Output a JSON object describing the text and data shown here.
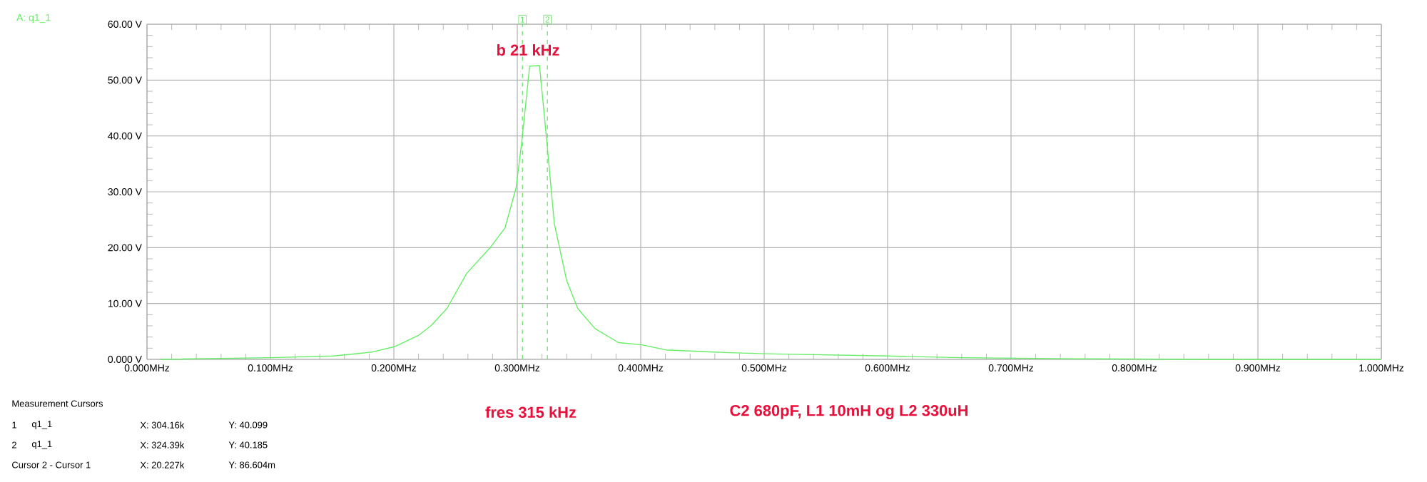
{
  "chart_data": {
    "type": "line",
    "legend": "top left",
    "grid": true,
    "marker": "none",
    "line_style": "solid",
    "xlim": [
      0,
      1
    ],
    "ylim": [
      0,
      60
    ],
    "xticks": [
      {
        "value": 0,
        "label": "0.000MHz"
      },
      {
        "value": 0.1,
        "label": "0.100MHz"
      },
      {
        "value": 0.2,
        "label": "0.200MHz"
      },
      {
        "value": 0.3,
        "label": "0.300MHz"
      },
      {
        "value": 0.4,
        "label": "0.400MHz"
      },
      {
        "value": 0.5,
        "label": "0.500MHz"
      },
      {
        "value": 0.6,
        "label": "0.600MHz"
      },
      {
        "value": 0.7,
        "label": "0.700MHz"
      },
      {
        "value": 0.8,
        "label": "0.800MHz"
      },
      {
        "value": 0.9,
        "label": "0.900MHz"
      },
      {
        "value": 1,
        "label": "1.000MHz"
      }
    ],
    "yticks": [
      {
        "value": 0,
        "label": "0.000 V"
      },
      {
        "value": 10,
        "label": "10.00 V"
      },
      {
        "value": 20,
        "label": "20.00 V"
      },
      {
        "value": 30,
        "label": "30.00 V"
      },
      {
        "value": 40,
        "label": "40.00 V"
      },
      {
        "value": 50,
        "label": "50.00 V"
      },
      {
        "value": 60,
        "label": "60.00 V"
      }
    ],
    "ref_lines": [
      {
        "axis": "x",
        "value": 0.30416,
        "color": "#66dd66",
        "line_style": "dashed"
      },
      {
        "axis": "x",
        "value": 0.32439,
        "color": "#66dd66",
        "line_style": "dashed"
      }
    ],
    "annotations": [
      {
        "text": "1",
        "x": 0.30416,
        "y": 60
      },
      {
        "text": "2",
        "x": 0.32439,
        "y": 60
      },
      "b 21 kHz",
      "fres 315 kHz",
      "C2 680pF, L1 10mH og L2 330uH",
      "Measurement Cursors",
      "1",
      "q1_1",
      "X:  304.16k",
      "Y:  40.099",
      "2",
      "q1_1",
      "X:  324.39k",
      "Y:  40.185",
      "Cursor 2 - Cursor 1",
      "X:  20.227k",
      "Y:  86.604m"
    ],
    "series": [
      {
        "name": "A: q1_1",
        "color": "#66ee66",
        "x": [
          0.011,
          0.1,
          0.151,
          0.182,
          0.201,
          0.22,
          0.23,
          0.243,
          0.259,
          0.278,
          0.29,
          0.299,
          0.304,
          0.31,
          0.318,
          0.324,
          0.33,
          0.34,
          0.349,
          0.363,
          0.382,
          0.401,
          0.42,
          0.459,
          0.5,
          0.6,
          0.66,
          0.75,
          0.85,
          1.0
        ],
        "values": [
          0,
          0.3,
          0.6,
          1.3,
          2.3,
          4.3,
          6,
          9.1,
          15.4,
          20,
          23.5,
          30.7,
          39.7,
          52.5,
          52.6,
          38.8,
          24.3,
          14.1,
          9.1,
          5.5,
          3,
          2.6,
          1.7,
          1.3,
          1,
          0.6,
          0.3,
          0.1,
          0,
          0
        ]
      }
    ]
  }
}
